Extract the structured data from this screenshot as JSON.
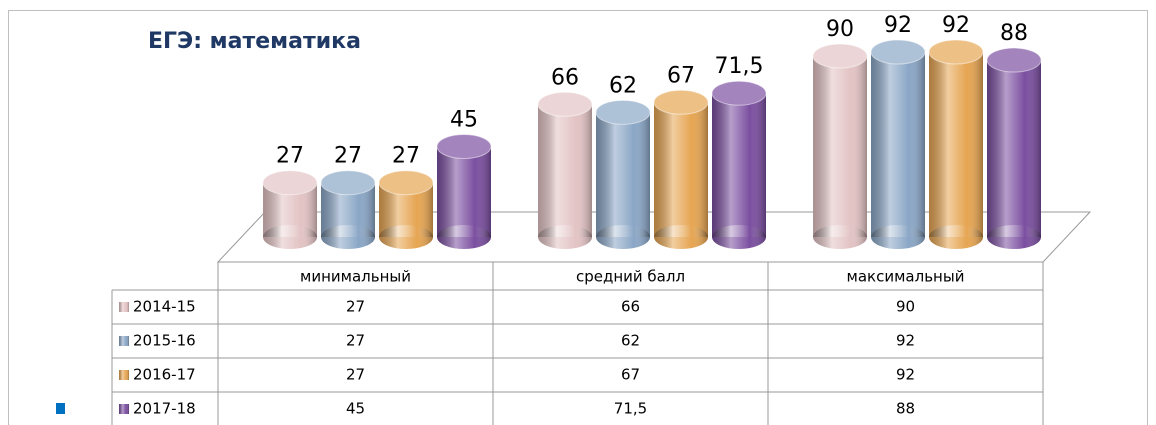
{
  "chart_data": {
    "type": "bar",
    "title": "ЕГЭ: математика",
    "categories": [
      "минимальный",
      "средний балл",
      "максимальный"
    ],
    "series": [
      {
        "name": "2014-15",
        "color": "#e3c3c4",
        "values": [
          27,
          66,
          90
        ]
      },
      {
        "name": "2015-16",
        "color": "#8aa6c6",
        "values": [
          27,
          62,
          92
        ]
      },
      {
        "name": "2016-17",
        "color": "#e6a552",
        "values": [
          27,
          67,
          92
        ]
      },
      {
        "name": "2017-18",
        "color": "#7b4fa0",
        "values": [
          45,
          71.5,
          88
        ],
        "value_labels": [
          "45",
          "71,5",
          "88"
        ]
      }
    ]
  }
}
